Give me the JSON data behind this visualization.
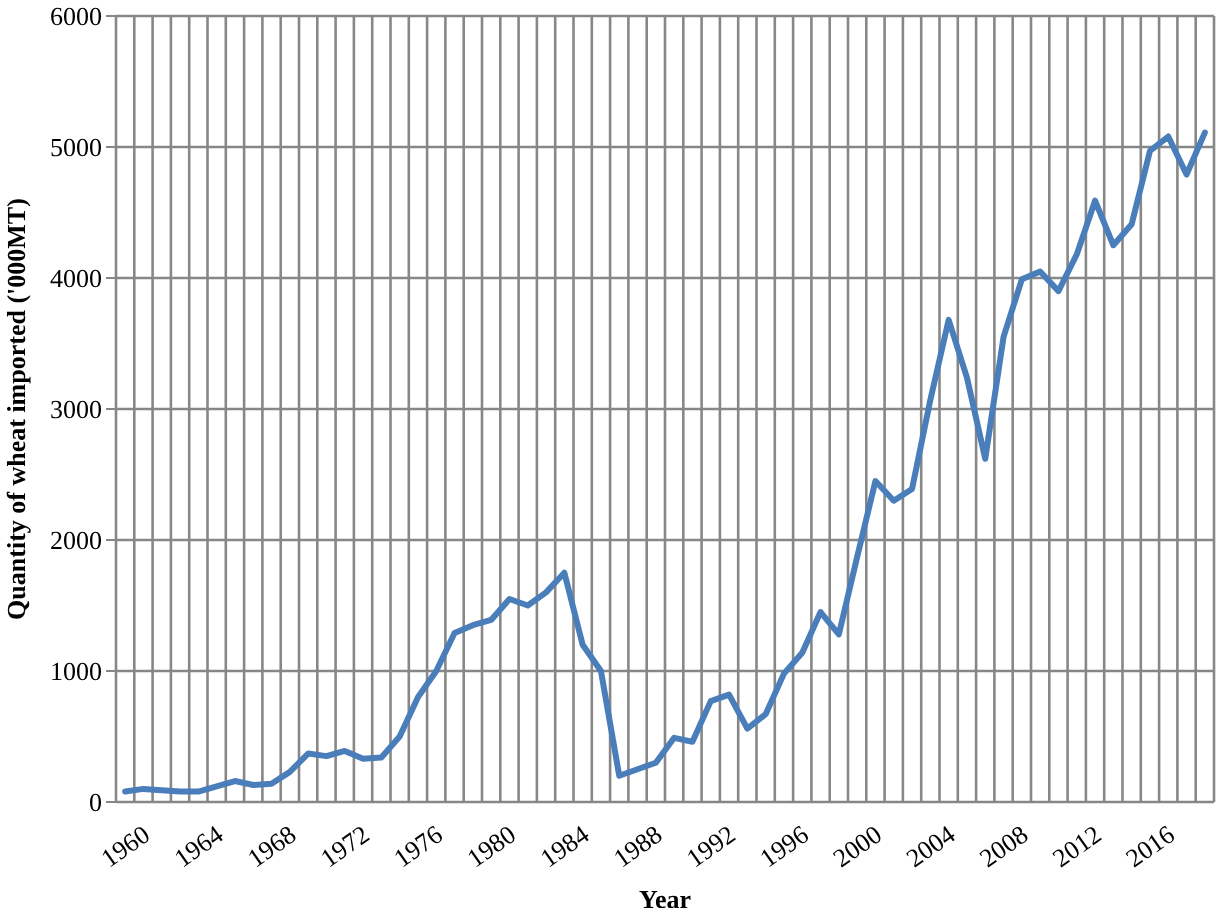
{
  "chart_data": {
    "type": "line",
    "xlabel": "Year",
    "ylabel": "Quantity of wheat imported  ('000MT)",
    "categories": [
      "1960",
      null,
      null,
      null,
      "1964",
      null,
      null,
      null,
      "1968",
      null,
      null,
      null,
      "1972",
      null,
      null,
      null,
      "1976",
      null,
      null,
      null,
      "1980",
      null,
      null,
      null,
      "1984",
      null,
      null,
      null,
      "1988",
      null,
      null,
      null,
      "1992",
      null,
      null,
      null,
      "1996",
      null,
      null,
      null,
      "2000",
      null,
      null,
      null,
      "2004",
      null,
      null,
      null,
      "2008",
      null,
      null,
      null,
      "2012",
      null,
      null,
      null,
      "2016",
      null,
      null,
      null
    ],
    "series": [
      {
        "color": "#4a7ebb",
        "values": [
          80,
          100,
          90,
          80,
          80,
          120,
          160,
          130,
          140,
          230,
          370,
          350,
          390,
          330,
          340,
          500,
          800,
          1000,
          1290,
          1350,
          1390,
          1550,
          1500,
          1600,
          1750,
          1200,
          1000,
          200,
          250,
          300,
          490,
          460,
          770,
          820,
          560,
          670,
          980,
          1140,
          1450,
          1280,
          1870,
          2450,
          2300,
          2390,
          3070,
          3680,
          3240,
          2620,
          3550,
          3990,
          4050,
          3900,
          4180,
          4590,
          4250,
          4410,
          4970,
          5080,
          4790,
          5110
        ]
      }
    ],
    "ylim": [
      0,
      6000
    ],
    "yticks": [
      0,
      1000,
      2000,
      3000,
      4000,
      5000,
      6000
    ],
    "grid": true,
    "marker": "none",
    "line_style": "solid"
  }
}
